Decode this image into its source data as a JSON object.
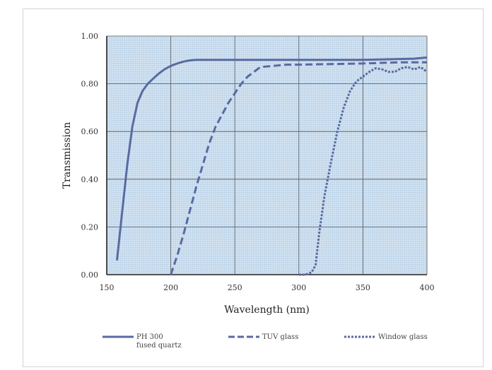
{
  "chart_data": {
    "type": "line",
    "title": "",
    "xlabel": "Wavelength (nm)",
    "ylabel": "Transmission",
    "xlim": [
      150,
      400
    ],
    "ylim": [
      0.0,
      1.0
    ],
    "x_ticks": [
      "150",
      "200",
      "250",
      "300",
      "350",
      "400"
    ],
    "y_ticks": [
      "0.00",
      "0.20",
      "0.40",
      "0.60",
      "0.80",
      "1.00"
    ],
    "grid": true,
    "plot_background": "#c9dcec",
    "series": [
      {
        "name_lines": [
          "PH 300",
          "fused quartz"
        ],
        "style": "solid",
        "color": "#5a6aa0",
        "x": [
          158,
          162,
          166,
          170,
          174,
          178,
          182,
          186,
          190,
          195,
          200,
          205,
          210,
          215,
          220,
          230,
          250,
          300,
          350,
          390,
          400
        ],
        "y": [
          0.06,
          0.26,
          0.46,
          0.62,
          0.72,
          0.77,
          0.8,
          0.82,
          0.84,
          0.86,
          0.875,
          0.885,
          0.893,
          0.898,
          0.9,
          0.9,
          0.9,
          0.9,
          0.9,
          0.905,
          0.91
        ]
      },
      {
        "name_lines": [
          "TUV glass"
        ],
        "style": "dashed",
        "color": "#5a6aa0",
        "x": [
          200,
          205,
          210,
          215,
          220,
          225,
          230,
          235,
          240,
          245,
          250,
          255,
          260,
          265,
          270,
          280,
          290,
          300,
          320,
          350,
          380,
          400
        ],
        "y": [
          0.0,
          0.08,
          0.17,
          0.27,
          0.37,
          0.46,
          0.55,
          0.62,
          0.67,
          0.72,
          0.76,
          0.8,
          0.83,
          0.85,
          0.87,
          0.875,
          0.88,
          0.88,
          0.882,
          0.885,
          0.89,
          0.89
        ]
      },
      {
        "name_lines": [
          "Window glass"
        ],
        "style": "dotted",
        "color": "#5a6aa0",
        "x": [
          300,
          305,
          310,
          313,
          316,
          320,
          325,
          330,
          335,
          340,
          345,
          350,
          355,
          360,
          365,
          370,
          375,
          380,
          385,
          390,
          395,
          400
        ],
        "y": [
          0.0,
          0.0,
          0.01,
          0.04,
          0.18,
          0.33,
          0.47,
          0.6,
          0.7,
          0.77,
          0.81,
          0.83,
          0.85,
          0.865,
          0.86,
          0.85,
          0.85,
          0.865,
          0.87,
          0.86,
          0.87,
          0.85
        ]
      }
    ]
  }
}
